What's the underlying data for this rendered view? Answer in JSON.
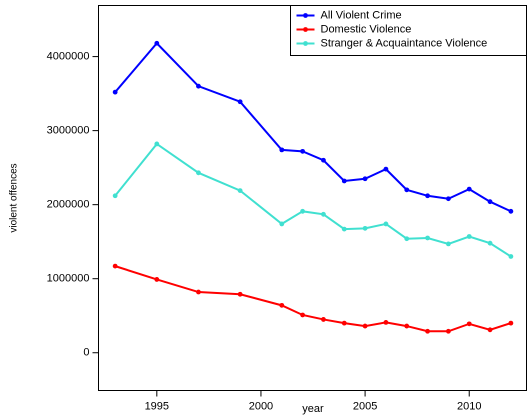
{
  "chart_data": {
    "type": "line",
    "xlabel": "year",
    "ylabel": "violent offences",
    "x": [
      1993,
      1995,
      1997,
      1999,
      2001,
      2002,
      2003,
      2004,
      2005,
      2006,
      2007,
      2008,
      2009,
      2010,
      2011,
      2012
    ],
    "series": [
      {
        "name": "All Violent Crime",
        "color": "#0000ff",
        "values": [
          3520000,
          4180000,
          3600000,
          3390000,
          2740000,
          2720000,
          2600000,
          2320000,
          2350000,
          2480000,
          2200000,
          2120000,
          2080000,
          2210000,
          2040000,
          1910000
        ]
      },
      {
        "name": "Domestic Violence",
        "color": "#ff0000",
        "values": [
          1170000,
          990000,
          820000,
          790000,
          640000,
          510000,
          450000,
          400000,
          360000,
          410000,
          360000,
          290000,
          290000,
          390000,
          310000,
          400000
        ]
      },
      {
        "name": "Stranger & Acquaintance Violence",
        "color": "#40e0d0",
        "values": [
          2120000,
          2820000,
          2430000,
          2190000,
          1740000,
          1910000,
          1870000,
          1670000,
          1680000,
          1740000,
          1540000,
          1550000,
          1470000,
          1570000,
          1480000,
          1300000
        ]
      }
    ],
    "xlim": [
      1992.2,
      2012.75
    ],
    "xticks": [
      1995,
      2000,
      2005,
      2010
    ],
    "ylim": [
      -510000,
      4690000
    ],
    "yticks": [
      0,
      1000000,
      2000000,
      3000000,
      4000000
    ],
    "legend": "top-right"
  }
}
